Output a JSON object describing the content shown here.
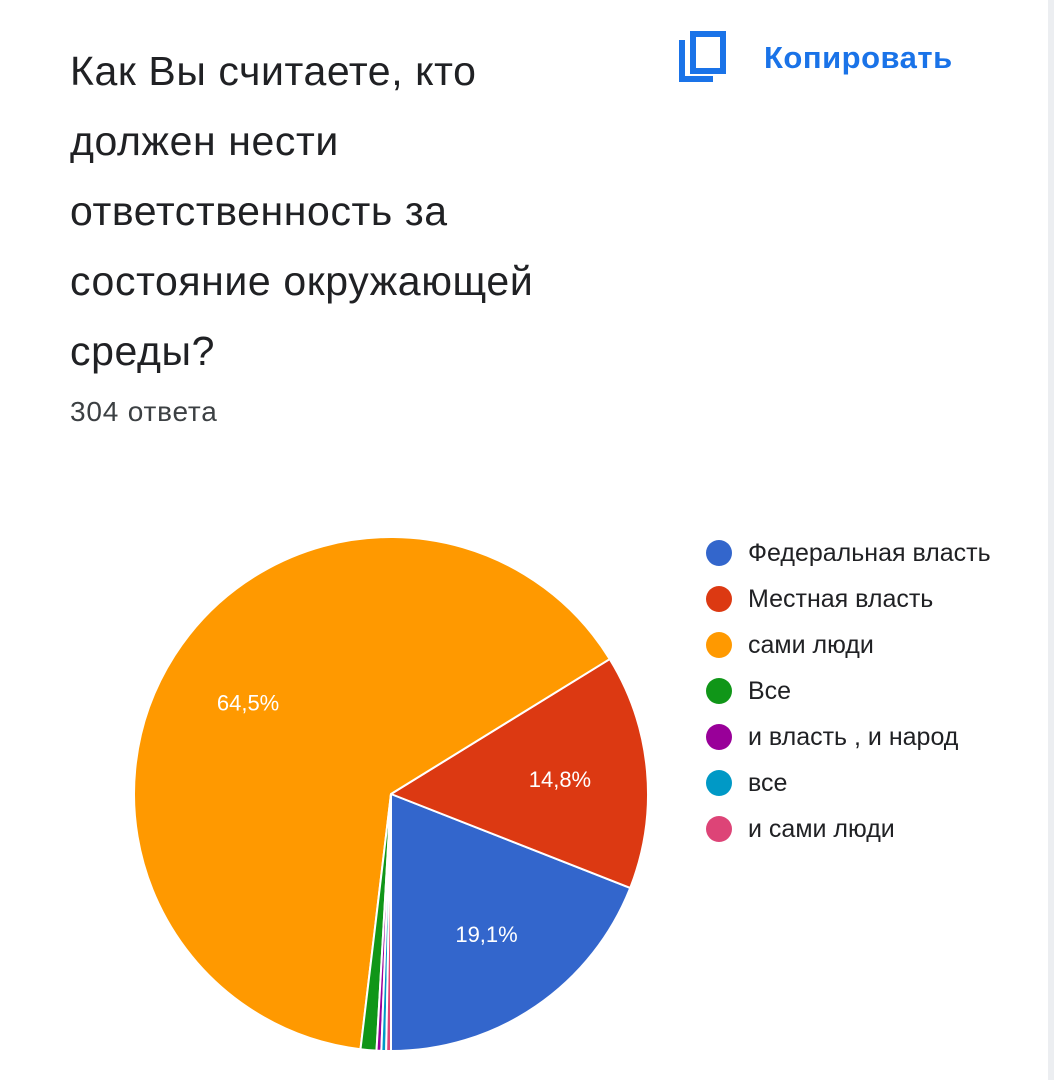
{
  "header": {
    "title": "Как Вы считаете, кто должен нести ответственность за состояние окружающей среды?",
    "copy_label": "Копировать",
    "response_count": "304 ответа",
    "accent": "#1a73e8"
  },
  "chart_data": {
    "type": "pie",
    "categories": [
      "Федеральная власть",
      "Местная власть",
      "сами люди",
      "Все",
      "и власть , и народ",
      "все",
      "и сами люди"
    ],
    "values": [
      19.1,
      14.8,
      64.5,
      1.0,
      0.3,
      0.3,
      0.3
    ],
    "labels": [
      "19,1%",
      "14,8%",
      "64,5%",
      "",
      "",
      "",
      ""
    ],
    "colors": [
      "#3366cc",
      "#dc3912",
      "#ff9900",
      "#109618",
      "#990099",
      "#0099c6",
      "#dd4477"
    ],
    "legend_position": "right",
    "start_angle_deg": 90,
    "direction": "clockwise"
  }
}
